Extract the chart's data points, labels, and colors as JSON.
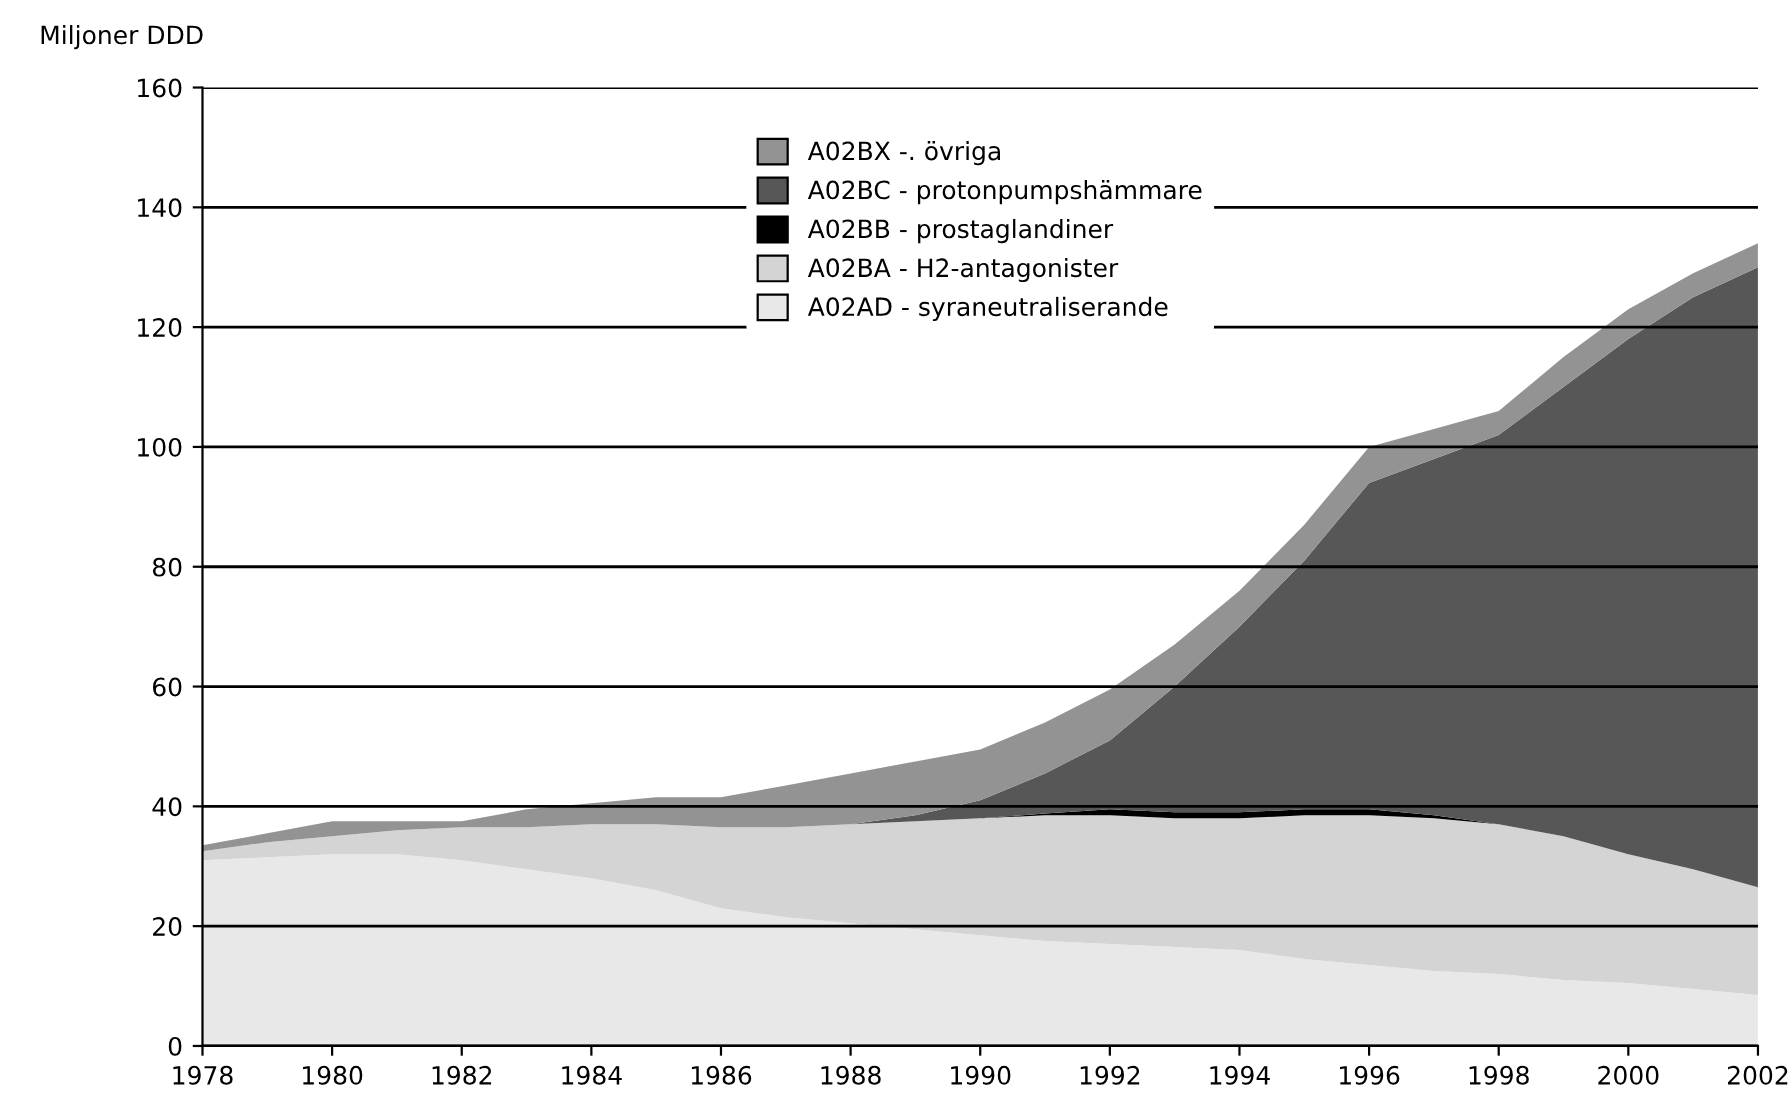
{
  "chart_data": {
    "type": "area",
    "stacked": true,
    "ylabel": "Miljoner DDD",
    "x": [
      1978,
      1979,
      1980,
      1981,
      1982,
      1983,
      1984,
      1985,
      1986,
      1987,
      1988,
      1989,
      1990,
      1991,
      1992,
      1993,
      1994,
      1995,
      1996,
      1997,
      1998,
      1999,
      2000,
      2001,
      2002
    ],
    "series": [
      {
        "name": "A02AD - syraneutraliserande",
        "color": "#e8e8e8",
        "values": [
          31,
          31.5,
          32,
          32,
          31,
          29.5,
          28,
          26,
          23,
          21.5,
          20.5,
          19.5,
          18.5,
          17.5,
          17,
          16.5,
          16,
          14.5,
          13.5,
          12.5,
          12,
          11,
          10.5,
          9.5,
          8.5
        ]
      },
      {
        "name": "A02BA - H2-antagonister",
        "color": "#d4d4d4",
        "values": [
          1.5,
          2.5,
          3,
          4,
          5.5,
          7,
          9,
          11,
          13.5,
          15,
          16.5,
          18,
          19.5,
          21,
          21.5,
          21.5,
          22,
          24,
          25,
          25.5,
          25,
          24,
          21.5,
          20,
          18
        ]
      },
      {
        "name": "A02BB - prostaglandiner",
        "color": "#000000",
        "values": [
          0,
          0,
          0,
          0,
          0,
          0,
          0,
          0,
          0,
          0,
          0,
          0,
          0,
          0.3,
          1,
          1,
          1,
          1,
          1,
          0.5,
          0,
          0,
          0,
          0,
          0
        ]
      },
      {
        "name": "A02BC - protonpumpshämmare",
        "color": "#575757",
        "values": [
          0,
          0,
          0,
          0,
          0,
          0,
          0,
          0,
          0,
          0,
          0,
          1,
          3,
          6.7,
          11.5,
          21,
          31,
          41.5,
          54.5,
          59.5,
          65,
          75,
          86,
          95.5,
          103.5
        ]
      },
      {
        "name": "A02BX -. övriga",
        "color": "#939393",
        "values": [
          1,
          1.5,
          2.5,
          1.5,
          1,
          3,
          3.5,
          4.5,
          5,
          7,
          8.5,
          9,
          8.5,
          8.5,
          8.5,
          7,
          6,
          6,
          6,
          5,
          4,
          5,
          5,
          4,
          4
        ]
      }
    ],
    "xlim": [
      1978,
      2002
    ],
    "xticks": [
      1978,
      1980,
      1982,
      1984,
      1986,
      1988,
      1990,
      1992,
      1994,
      1996,
      1998,
      2000,
      2002
    ],
    "ylim": [
      0,
      160
    ],
    "yticks": [
      0,
      20,
      40,
      60,
      80,
      100,
      120,
      140,
      160
    ],
    "grid": "y",
    "legend": "top"
  }
}
